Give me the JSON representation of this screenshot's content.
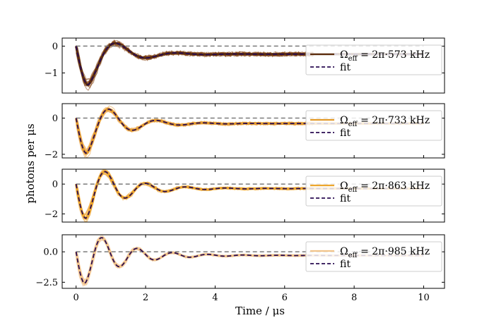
{
  "figure": {
    "xlabel": "Time / μs",
    "ylabel": "photons per μs"
  },
  "colors": {
    "baseline": "#7a7a7a",
    "fit": "#2a0d52",
    "panel_colors": [
      "#5c2d0e",
      "#e39a2a",
      "#eda62c",
      "#f2c48a"
    ],
    "trace_colors": [
      "#8a4b1c",
      "#eca445",
      "#eeaa3e",
      "#f3c592"
    ]
  },
  "chart_data": [
    {
      "type": "line",
      "xlim": [
        -0.4,
        10.6
      ],
      "ylim": [
        -1.75,
        0.3
      ],
      "xticks": [
        0,
        2,
        4,
        6,
        8,
        10
      ],
      "yticks": [
        0,
        -1
      ],
      "ytick_labels": [
        "0",
        "−1"
      ],
      "legend": {
        "position": "right",
        "entries": [
          "Ωeff = 2π·573 kHz",
          "fit"
        ]
      },
      "legend_parts": {
        "base": "Ω",
        "sub": "eff",
        "rest": " = 2π·573 kHz"
      },
      "fit_params": {
        "y_inf": -0.3,
        "dip": -1.45,
        "t_min": 0.35,
        "f_MHz": 0.573,
        "tau_us": 0.8
      },
      "baseline": 0,
      "series": [
        {
          "name": "Ωeff = 2π·573 kHz",
          "x": [
            0,
            0.35,
            1.3,
            2.1,
            3.5,
            6,
            10
          ],
          "y": [
            0,
            -1.45,
            0.1,
            -0.42,
            -0.28,
            -0.3,
            -0.3
          ]
        },
        {
          "name": "fit",
          "x": [
            0,
            0.35,
            1.3,
            2.1,
            3.5,
            6,
            10
          ],
          "y": [
            0,
            -1.45,
            0.1,
            -0.42,
            -0.28,
            -0.3,
            -0.3
          ]
        }
      ]
    },
    {
      "type": "line",
      "xlim": [
        -0.4,
        10.6
      ],
      "ylim": [
        -2.2,
        0.8
      ],
      "xticks": [
        0,
        2,
        4,
        6,
        8,
        10
      ],
      "yticks": [
        0,
        -2
      ],
      "ytick_labels": [
        "0",
        "−2"
      ],
      "legend": {
        "position": "right",
        "entries": [
          "Ωeff = 2π·733 kHz",
          "fit"
        ]
      },
      "legend_parts": {
        "base": "Ω",
        "sub": "eff",
        "rest": " = 2π·733 kHz"
      },
      "fit_params": {
        "y_inf": -0.3,
        "dip": -1.95,
        "t_min": 0.3,
        "f_MHz": 0.733,
        "tau_us": 0.9
      },
      "baseline": 0,
      "series": [
        {
          "name": "Ωeff = 2π·733 kHz",
          "x": [
            0,
            0.3,
            1.0,
            1.7,
            2.5,
            4,
            10
          ],
          "y": [
            0,
            -1.95,
            0.3,
            -0.6,
            -0.2,
            -0.3,
            -0.3
          ]
        },
        {
          "name": "fit",
          "x": [
            0,
            0.3,
            1.0,
            1.7,
            2.5,
            4,
            10
          ],
          "y": [
            0,
            -1.95,
            0.3,
            -0.6,
            -0.2,
            -0.3,
            -0.3
          ]
        }
      ]
    },
    {
      "type": "line",
      "xlim": [
        -0.4,
        10.6
      ],
      "ylim": [
        -2.55,
        1.0
      ],
      "xticks": [
        0,
        2,
        4,
        6,
        8,
        10
      ],
      "yticks": [
        0,
        -2
      ],
      "ytick_labels": [
        "0",
        "−2"
      ],
      "legend": {
        "position": "right",
        "entries": [
          "Ωeff = 2π·863 kHz",
          "fit"
        ]
      },
      "legend_parts": {
        "base": "Ω",
        "sub": "eff",
        "rest": " = 2π·863 kHz"
      },
      "fit_params": {
        "y_inf": -0.3,
        "dip": -2.3,
        "t_min": 0.28,
        "f_MHz": 0.863,
        "tau_us": 1.0
      },
      "baseline": 0,
      "series": [
        {
          "name": "Ωeff = 2π·863 kHz",
          "x": [
            0,
            0.28,
            0.85,
            1.4,
            2.0,
            3.5,
            10
          ],
          "y": [
            0,
            -2.3,
            0.5,
            -0.8,
            -0.1,
            -0.3,
            -0.3
          ]
        },
        {
          "name": "fit",
          "x": [
            0,
            0.28,
            0.85,
            1.4,
            2.0,
            3.5,
            10
          ],
          "y": [
            0,
            -2.3,
            0.5,
            -0.8,
            -0.1,
            -0.3,
            -0.3
          ]
        }
      ]
    },
    {
      "type": "line",
      "xlim": [
        -0.4,
        10.6
      ],
      "ylim": [
        -3.0,
        1.4
      ],
      "xticks": [
        0,
        2,
        4,
        6,
        8,
        10
      ],
      "yticks": [
        0.0,
        -2.5
      ],
      "ytick_labels": [
        "0.0",
        "−2.5"
      ],
      "legend": {
        "position": "right",
        "entries": [
          "Ωeff = 2π·985 kHz",
          "fit"
        ]
      },
      "legend_parts": {
        "base": "Ω",
        "sub": "eff",
        "rest": " = 2π·985 kHz"
      },
      "fit_params": {
        "y_inf": -0.3,
        "dip": -2.6,
        "t_min": 0.25,
        "f_MHz": 0.985,
        "tau_us": 1.1
      },
      "baseline": 0,
      "series": [
        {
          "name": "Ωeff = 2π·985 kHz",
          "x": [
            0,
            0.25,
            0.75,
            1.25,
            1.75,
            3,
            10
          ],
          "y": [
            0,
            -2.6,
            0.8,
            -1.0,
            0.1,
            -0.3,
            -0.3
          ]
        },
        {
          "name": "fit",
          "x": [
            0,
            0.25,
            0.75,
            1.25,
            1.75,
            3,
            10
          ],
          "y": [
            0,
            -2.6,
            0.8,
            -1.0,
            0.1,
            -0.3,
            -0.3
          ]
        }
      ]
    }
  ]
}
